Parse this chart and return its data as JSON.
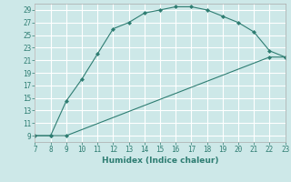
{
  "xlabel": "Humidex (Indice chaleur)",
  "background_color": "#cde8e8",
  "grid_color": "#b0d0d0",
  "line_color": "#2e7d72",
  "marker_color": "#2e7d72",
  "xlim": [
    7,
    23
  ],
  "ylim": [
    8,
    30
  ],
  "xticks": [
    7,
    8,
    9,
    10,
    11,
    12,
    13,
    14,
    15,
    16,
    17,
    18,
    19,
    20,
    21,
    22,
    23
  ],
  "yticks": [
    9,
    11,
    13,
    15,
    17,
    19,
    21,
    23,
    25,
    27,
    29
  ],
  "curve1_x": [
    7,
    8,
    9,
    10,
    11,
    12,
    13,
    14,
    15,
    16,
    17,
    18,
    19,
    20,
    21,
    22,
    23
  ],
  "curve1_y": [
    9,
    9,
    14.5,
    18,
    22,
    26,
    27,
    28.5,
    29,
    29.5,
    29.5,
    29,
    28,
    27,
    25.5,
    22.5,
    21.5
  ],
  "curve2_x": [
    7,
    8,
    9,
    22,
    23
  ],
  "curve2_y": [
    9,
    9,
    9,
    21.5,
    21.5
  ],
  "font_color": "#2e7d72"
}
